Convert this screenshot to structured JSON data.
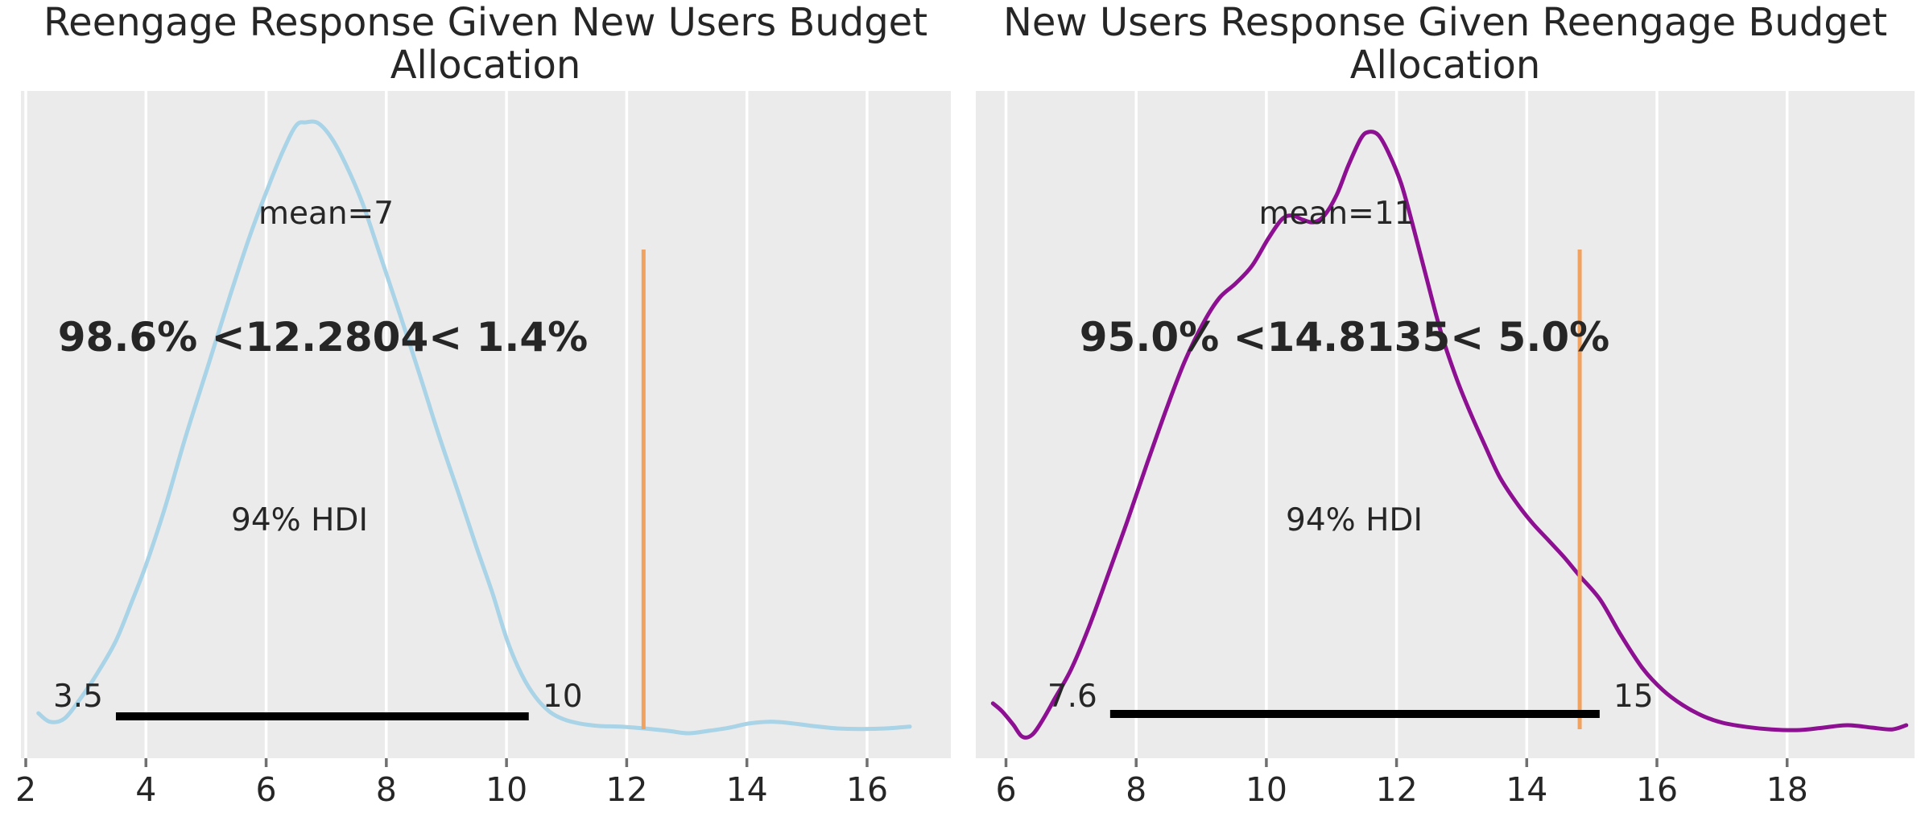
{
  "figure": {
    "background": "#ffffff",
    "panel_background": "#ebebeb",
    "gridline_color": "#ffffff",
    "text_color": "#262626",
    "orange_text_color": "#f07e23",
    "orange_line_color": "#f2a25f",
    "hdi_bar_color": "#000000"
  },
  "chart_data": [
    {
      "type": "kde",
      "title": "Reengage Response Given New Users Budget Allocation",
      "title_line1": "Reengage Response Given New Users Budget",
      "title_line2": "Allocation",
      "curve_color": "#a9d3e6",
      "mean": 7,
      "mean_label": "mean=7",
      "hdi_label": "94% HDI",
      "hdi_lo_label": "3.5",
      "hdi_hi_label": "10",
      "hdi_interval_est": [
        3.5,
        10.37
      ],
      "ref_val": 12.2804,
      "ref_annotation": "98.6% <12.2804< 1.4%",
      "pct_below": "98.6%",
      "pct_above": "1.4%",
      "x_ticks": [
        2,
        4,
        6,
        8,
        10,
        12,
        14,
        16
      ],
      "x_range": [
        1.92,
        17.4
      ],
      "grid": true,
      "legend": false,
      "curve_points": [
        [
          2.21,
          0.029
        ],
        [
          2.4,
          0.015
        ],
        [
          2.64,
          0.02
        ],
        [
          2.91,
          0.053
        ],
        [
          3.18,
          0.093
        ],
        [
          3.5,
          0.148
        ],
        [
          3.78,
          0.216
        ],
        [
          4.01,
          0.275
        ],
        [
          4.32,
          0.368
        ],
        [
          4.65,
          0.48
        ],
        [
          5.03,
          0.599
        ],
        [
          5.39,
          0.712
        ],
        [
          5.72,
          0.811
        ],
        [
          6.02,
          0.89
        ],
        [
          6.29,
          0.955
        ],
        [
          6.5,
          0.995
        ],
        [
          6.66,
          1.0
        ],
        [
          6.86,
          0.999
        ],
        [
          7.09,
          0.974
        ],
        [
          7.33,
          0.93
        ],
        [
          7.6,
          0.868
        ],
        [
          7.89,
          0.784
        ],
        [
          8.2,
          0.692
        ],
        [
          8.54,
          0.59
        ],
        [
          8.87,
          0.487
        ],
        [
          9.21,
          0.388
        ],
        [
          9.5,
          0.302
        ],
        [
          9.77,
          0.225
        ],
        [
          10.01,
          0.149
        ],
        [
          10.25,
          0.093
        ],
        [
          10.48,
          0.056
        ],
        [
          10.71,
          0.032
        ],
        [
          10.95,
          0.019
        ],
        [
          11.22,
          0.012
        ],
        [
          11.55,
          0.008
        ],
        [
          11.89,
          0.007
        ],
        [
          12.29,
          0.004
        ],
        [
          12.69,
          0.0
        ],
        [
          13.03,
          -0.004
        ],
        [
          13.36,
          0.0
        ],
        [
          13.7,
          0.005
        ],
        [
          14.03,
          0.012
        ],
        [
          14.37,
          0.015
        ],
        [
          14.7,
          0.013
        ],
        [
          15.1,
          0.008
        ],
        [
          15.5,
          0.004
        ],
        [
          15.91,
          0.003
        ],
        [
          16.31,
          0.004
        ],
        [
          16.71,
          0.007
        ]
      ]
    },
    {
      "type": "kde",
      "title": "New Users Response Given Reengage Budget Allocation",
      "title_line1": "New Users Response Given Reengage Budget",
      "title_line2": "Allocation",
      "curve_color": "#8d1092",
      "mean": 11,
      "mean_label": "mean=11",
      "hdi_label": "94% HDI",
      "hdi_lo_label": "7.6",
      "hdi_hi_label": "15",
      "hdi_interval_est": [
        7.6,
        15.12
      ],
      "ref_val": 14.8135,
      "ref_annotation": "95.0% <14.8135< 5.0%",
      "pct_below": "95.0%",
      "pct_above": "5.0%",
      "x_ticks": [
        6,
        8,
        10,
        12,
        14,
        16,
        18
      ],
      "x_range": [
        5.53,
        19.96
      ],
      "grid": true,
      "legend": false,
      "curve_points": [
        [
          5.8,
          0.056
        ],
        [
          5.94,
          0.043
        ],
        [
          6.11,
          0.021
        ],
        [
          6.25,
          0.001
        ],
        [
          6.4,
          0.004
        ],
        [
          6.56,
          0.028
        ],
        [
          6.75,
          0.064
        ],
        [
          7.0,
          0.112
        ],
        [
          7.27,
          0.181
        ],
        [
          7.55,
          0.263
        ],
        [
          7.86,
          0.356
        ],
        [
          8.17,
          0.453
        ],
        [
          8.48,
          0.547
        ],
        [
          8.75,
          0.622
        ],
        [
          9.04,
          0.686
        ],
        [
          9.28,
          0.726
        ],
        [
          9.53,
          0.75
        ],
        [
          9.78,
          0.779
        ],
        [
          10.03,
          0.824
        ],
        [
          10.24,
          0.856
        ],
        [
          10.4,
          0.862
        ],
        [
          10.56,
          0.855
        ],
        [
          10.73,
          0.851
        ],
        [
          10.89,
          0.862
        ],
        [
          11.08,
          0.896
        ],
        [
          11.26,
          0.945
        ],
        [
          11.45,
          0.989
        ],
        [
          11.57,
          1.0
        ],
        [
          11.72,
          0.995
        ],
        [
          11.88,
          0.965
        ],
        [
          12.07,
          0.915
        ],
        [
          12.25,
          0.846
        ],
        [
          12.46,
          0.759
        ],
        [
          12.68,
          0.67
        ],
        [
          12.91,
          0.596
        ],
        [
          13.13,
          0.537
        ],
        [
          13.35,
          0.484
        ],
        [
          13.58,
          0.431
        ],
        [
          13.82,
          0.391
        ],
        [
          14.07,
          0.356
        ],
        [
          14.32,
          0.327
        ],
        [
          14.57,
          0.298
        ],
        [
          14.81,
          0.267
        ],
        [
          15.13,
          0.227
        ],
        [
          15.44,
          0.17
        ],
        [
          15.78,
          0.114
        ],
        [
          16.09,
          0.078
        ],
        [
          16.4,
          0.053
        ],
        [
          16.71,
          0.035
        ],
        [
          17.01,
          0.024
        ],
        [
          17.38,
          0.017
        ],
        [
          17.76,
          0.013
        ],
        [
          18.19,
          0.012
        ],
        [
          18.56,
          0.016
        ],
        [
          18.93,
          0.02
        ],
        [
          19.3,
          0.016
        ],
        [
          19.61,
          0.013
        ],
        [
          19.83,
          0.02
        ]
      ]
    }
  ]
}
